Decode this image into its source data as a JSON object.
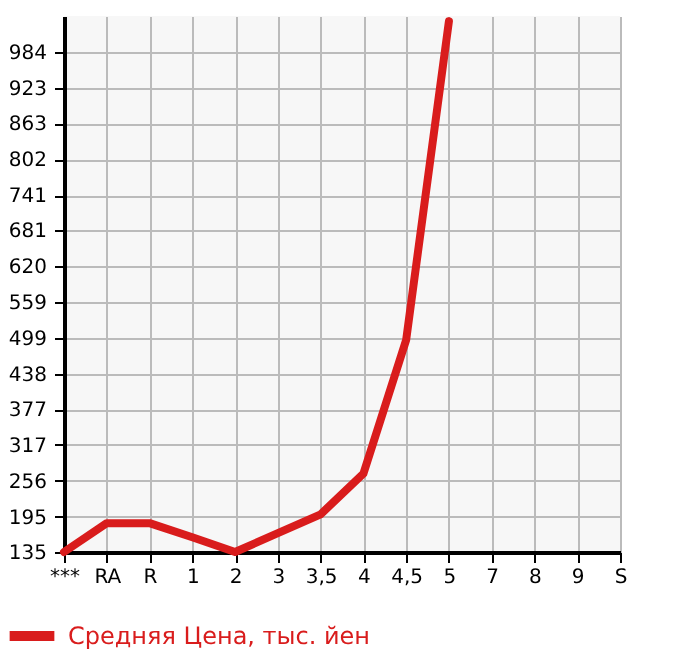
{
  "chart_data": {
    "type": "line",
    "categories": [
      "***",
      "RA",
      "R",
      "1",
      "2",
      "3",
      "3,5",
      "4",
      "4,5",
      "5",
      "7",
      "8",
      "9",
      "S"
    ],
    "series": [
      {
        "name": "Средняя Цена, тыс. йен",
        "color": "#d91c1c",
        "values": [
          135,
          184,
          184,
          160,
          135,
          167,
          199,
          268,
          495,
          1036,
          null,
          null,
          null,
          null
        ]
      }
    ],
    "ylim": [
      135,
      1045
    ],
    "yticks": [
      135,
      195,
      256,
      317,
      377,
      438,
      499,
      559,
      620,
      681,
      741,
      802,
      863,
      923,
      984
    ],
    "grid": true,
    "legend": "bottom left",
    "marker": "none",
    "line_style": "solid"
  }
}
